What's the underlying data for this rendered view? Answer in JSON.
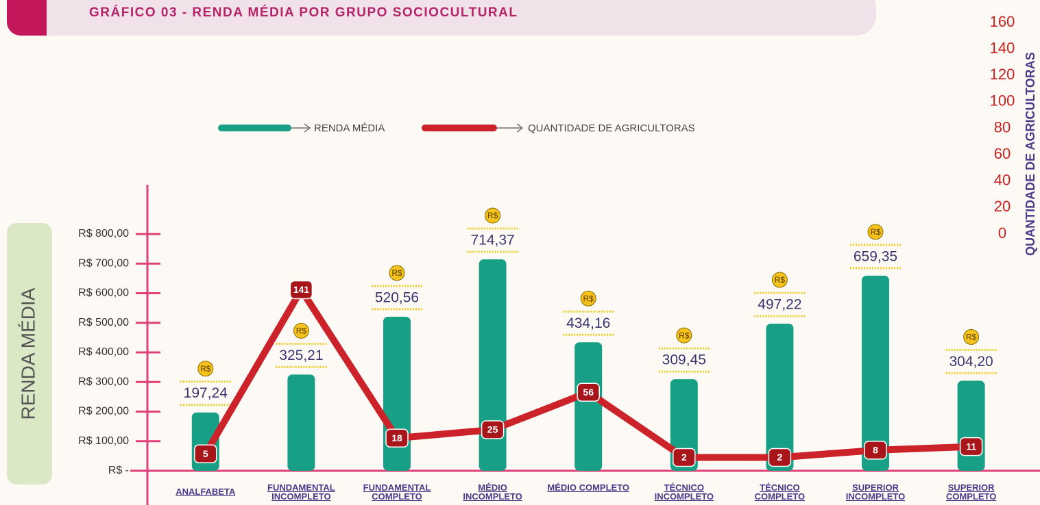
{
  "chart_data": {
    "type": "bar_line",
    "title": "GRÁFICO 03 - RENDA MÉDIA POR GRUPO SOCIOCULTURAL",
    "ylabel": "RENDA MÉDIA",
    "y2label": "QUANTIDADE DE AGRICULTORAS",
    "coin_label": "R$",
    "categories": [
      "ANALFABETA",
      "FUNDAMENTAL INCOMPLETO",
      "FUNDAMENTAL COMPLETO",
      "MÉDIO INCOMPLETO",
      "MÉDIO COMPLETO",
      "TÉCNICO INCOMPLETO",
      "TÉCNICO COMPLETO",
      "SUPERIOR INCOMPLETO",
      "SUPERIOR COMPLETO"
    ],
    "series": [
      {
        "name": "RENDA MÉDIA",
        "color": "#17a085",
        "type": "bar",
        "values": [
          197.24,
          325.21,
          520.56,
          714.37,
          434.16,
          309.45,
          497.22,
          659.35,
          304.2
        ],
        "value_labels": [
          "197,24",
          "325,21",
          "520,56",
          "714,37",
          "434,16",
          "309,45",
          "497,22",
          "659,35",
          "304,20"
        ]
      },
      {
        "name": "QUANTIDADE DE AGRICULTORAS",
        "color": "#cc2229",
        "type": "line",
        "axis": "y2",
        "values": [
          5,
          141,
          18,
          25,
          56,
          2,
          2,
          8,
          11
        ]
      }
    ],
    "ylim": [
      0,
      800
    ],
    "yticks": [
      {
        "value": 0,
        "label": "R$ -"
      },
      {
        "value": 100,
        "label": "R$ 100,00"
      },
      {
        "value": 200,
        "label": "R$ 200,00"
      },
      {
        "value": 300,
        "label": "R$ 300,00"
      },
      {
        "value": 400,
        "label": "R$ 400,00"
      },
      {
        "value": 500,
        "label": "R$ 500,00"
      },
      {
        "value": 600,
        "label": "R$ 600,00"
      },
      {
        "value": 700,
        "label": "R$ 700,00"
      },
      {
        "value": 800,
        "label": "R$ 800,00"
      }
    ],
    "y2lim": [
      0,
      160
    ],
    "y2ticks": [
      0,
      20,
      40,
      60,
      80,
      100,
      120,
      140,
      160
    ]
  }
}
